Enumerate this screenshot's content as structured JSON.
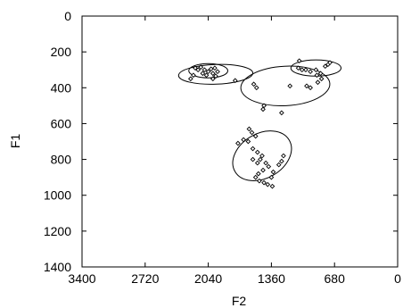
{
  "chart_data": {
    "type": "scatter",
    "title": "",
    "xlabel": "F2",
    "ylabel": "F1",
    "x_reversed": true,
    "y_reversed": true,
    "xlim": [
      3400,
      0
    ],
    "ylim": [
      0,
      1400
    ],
    "x_ticks": [
      3400,
      2720,
      2040,
      1360,
      680,
      0
    ],
    "y_ticks": [
      0,
      200,
      400,
      600,
      800,
      1000,
      1200,
      1400
    ],
    "marker": "diamond",
    "grid": false,
    "colors": {
      "points": "#000000",
      "ellipses": "#000000",
      "axes": "#000000"
    },
    "points": [
      {
        "x": 2180,
        "y": 290
      },
      {
        "x": 2150,
        "y": 300
      },
      {
        "x": 2120,
        "y": 285
      },
      {
        "x": 2080,
        "y": 300
      },
      {
        "x": 2040,
        "y": 310
      },
      {
        "x": 2010,
        "y": 295
      },
      {
        "x": 1990,
        "y": 320
      },
      {
        "x": 1960,
        "y": 335
      },
      {
        "x": 1940,
        "y": 310
      },
      {
        "x": 2100,
        "y": 320
      },
      {
        "x": 2200,
        "y": 330
      },
      {
        "x": 2230,
        "y": 350
      },
      {
        "x": 1970,
        "y": 290
      },
      {
        "x": 2060,
        "y": 330
      },
      {
        "x": 1990,
        "y": 350
      },
      {
        "x": 1750,
        "y": 360
      },
      {
        "x": 1550,
        "y": 380
      },
      {
        "x": 1520,
        "y": 400
      },
      {
        "x": 1440,
        "y": 500
      },
      {
        "x": 1450,
        "y": 520
      },
      {
        "x": 1160,
        "y": 390
      },
      {
        "x": 1250,
        "y": 540
      },
      {
        "x": 980,
        "y": 390
      },
      {
        "x": 940,
        "y": 400
      },
      {
        "x": 860,
        "y": 370
      },
      {
        "x": 820,
        "y": 350
      },
      {
        "x": 830,
        "y": 320
      },
      {
        "x": 880,
        "y": 300
      },
      {
        "x": 940,
        "y": 310
      },
      {
        "x": 990,
        "y": 300
      },
      {
        "x": 1030,
        "y": 300
      },
      {
        "x": 1070,
        "y": 290
      },
      {
        "x": 1060,
        "y": 250
      },
      {
        "x": 780,
        "y": 280
      },
      {
        "x": 750,
        "y": 270
      },
      {
        "x": 730,
        "y": 260
      },
      {
        "x": 870,
        "y": 330
      },
      {
        "x": 1600,
        "y": 630
      },
      {
        "x": 1570,
        "y": 650
      },
      {
        "x": 1530,
        "y": 670
      },
      {
        "x": 1610,
        "y": 700
      },
      {
        "x": 1660,
        "y": 690
      },
      {
        "x": 1720,
        "y": 710
      },
      {
        "x": 1560,
        "y": 740
      },
      {
        "x": 1510,
        "y": 760
      },
      {
        "x": 1460,
        "y": 780
      },
      {
        "x": 1560,
        "y": 800
      },
      {
        "x": 1480,
        "y": 800
      },
      {
        "x": 1510,
        "y": 820
      },
      {
        "x": 1420,
        "y": 820
      },
      {
        "x": 1390,
        "y": 840
      },
      {
        "x": 1450,
        "y": 860
      },
      {
        "x": 1500,
        "y": 880
      },
      {
        "x": 1530,
        "y": 900
      },
      {
        "x": 1490,
        "y": 920
      },
      {
        "x": 1440,
        "y": 930
      },
      {
        "x": 1400,
        "y": 940
      },
      {
        "x": 1360,
        "y": 900
      },
      {
        "x": 1350,
        "y": 950
      },
      {
        "x": 1280,
        "y": 830
      },
      {
        "x": 1250,
        "y": 810
      },
      {
        "x": 1230,
        "y": 780
      },
      {
        "x": 1340,
        "y": 870
      }
    ],
    "ellipses": [
      {
        "cx": 2040,
        "cy": 305,
        "rx": 210,
        "ry": 40,
        "angle": 0
      },
      {
        "cx": 1960,
        "cy": 325,
        "rx": 400,
        "ry": 55,
        "angle": -2
      },
      {
        "cx": 1210,
        "cy": 390,
        "rx": 480,
        "ry": 110,
        "angle": -3
      },
      {
        "cx": 880,
        "cy": 290,
        "rx": 270,
        "ry": 45,
        "angle": 0
      },
      {
        "cx": 1460,
        "cy": 780,
        "rx": 240,
        "ry": 175,
        "angle": 60
      }
    ]
  }
}
